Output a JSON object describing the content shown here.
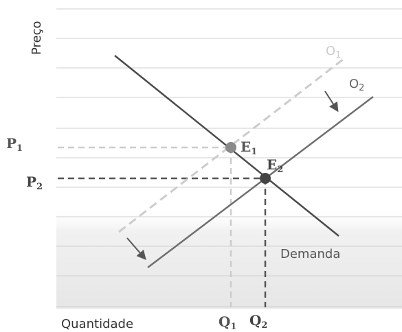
{
  "labels": {
    "price_axis": "Preço",
    "quantity_axis": "Quantidade",
    "supply_1": "O",
    "supply_1_sub": "1",
    "supply_2": "O",
    "supply_2_sub": "2",
    "demand": "Demanda",
    "equilibrium_1": "E",
    "equilibrium_1_sub": "1",
    "equilibrium_2": "E",
    "equilibrium_2_sub": "2",
    "price_1": "P",
    "price_1_sub": "1",
    "price_2": "P",
    "price_2_sub": "2",
    "quantity_1": "Q",
    "quantity_1_sub": "1",
    "quantity_2": "Q",
    "quantity_2_sub": "2"
  },
  "colors": {
    "demand_line": "#4a4a4a",
    "supply_1_line": "#cccccc",
    "supply_2_line": "#6e6e6e",
    "equilibrium_1_point": "#8a8a8a",
    "equilibrium_2_point": "#444444",
    "arrows": "#555555",
    "background_band": "#ececec"
  }
}
